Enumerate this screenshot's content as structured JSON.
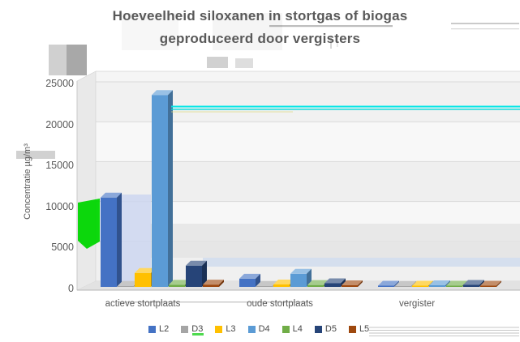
{
  "title": {
    "line1": "Hoeveelheid siloxanen in stortgas of biogas",
    "line2": "geproduceerd door vergisters"
  },
  "y_axis": {
    "title": "Concentratie µg/m³",
    "tick_labels": [
      "0",
      "5000",
      "10000",
      "15000",
      "20000",
      "25000"
    ]
  },
  "chart_data": {
    "type": "bar",
    "projection": "3d",
    "title": "Hoeveelheid siloxanen in stortgas of biogas geproduceerd door vergisters",
    "xlabel": "",
    "ylabel": "Concentratie µg/m³",
    "ylim": [
      0,
      25000
    ],
    "ytick_step": 5000,
    "grid": true,
    "legend_position": "bottom",
    "categories": [
      "actieve stortplaats",
      "oude stortplaats",
      "vergister"
    ],
    "series": [
      {
        "name": "L2",
        "color": "#4472C4",
        "values": [
          10900,
          1000,
          150
        ]
      },
      {
        "name": "D3",
        "color": "#A5A5A5",
        "values": [
          120,
          100,
          100
        ]
      },
      {
        "name": "L3",
        "color": "#FFC000",
        "values": [
          1700,
          300,
          150
        ]
      },
      {
        "name": "D4",
        "color": "#5B9BD5",
        "values": [
          23400,
          1600,
          200
        ]
      },
      {
        "name": "L4",
        "color": "#70AD47",
        "values": [
          260,
          230,
          150
        ]
      },
      {
        "name": "D5",
        "color": "#264478",
        "values": [
          2600,
          450,
          250
        ]
      },
      {
        "name": "L5",
        "color": "#9E480E",
        "values": [
          280,
          200,
          150
        ]
      }
    ]
  }
}
